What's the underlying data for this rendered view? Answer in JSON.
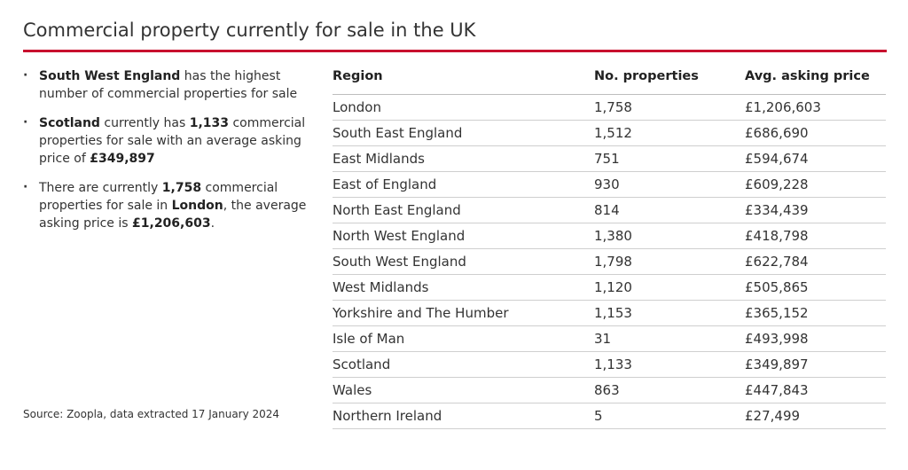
{
  "title": "Commercial property currently for sale in the UK",
  "bullets": [
    {
      "parts": [
        {
          "t": "South West England",
          "b": true
        },
        {
          "t": " has the highest number of commercial properties for sale",
          "b": false
        }
      ]
    },
    {
      "parts": [
        {
          "t": "Scotland",
          "b": true
        },
        {
          "t": " currently has ",
          "b": false
        },
        {
          "t": "1,133",
          "b": true
        },
        {
          "t": " commercial properties for sale with an average asking price of ",
          "b": false
        },
        {
          "t": "£349,897",
          "b": true
        }
      ]
    },
    {
      "parts": [
        {
          "t": "There are currently ",
          "b": false
        },
        {
          "t": "1,758",
          "b": true
        },
        {
          "t": " commercial properties for sale in ",
          "b": false
        },
        {
          "t": "London",
          "b": true
        },
        {
          "t": ", the average asking price is ",
          "b": false
        },
        {
          "t": "£1,206,603",
          "b": true
        },
        {
          "t": ".",
          "b": false
        }
      ]
    }
  ],
  "bullet_symbol": "·",
  "source": "Source: Zoopla, data extracted 17 January 2024",
  "colors": {
    "accent": "#c8102e"
  },
  "chart_data": {
    "type": "table",
    "columns": [
      "Region",
      "No. properties",
      "Avg. asking price"
    ],
    "rows": [
      [
        "London",
        "1,758",
        "£1,206,603"
      ],
      [
        "South East England",
        "1,512",
        "£686,690"
      ],
      [
        "East Midlands",
        "751",
        "£594,674"
      ],
      [
        "East of England",
        "930",
        "£609,228"
      ],
      [
        "North East England",
        "814",
        "£334,439"
      ],
      [
        "North West England",
        "1,380",
        "£418,798"
      ],
      [
        "South West England",
        "1,798",
        "£622,784"
      ],
      [
        "West Midlands",
        "1,120",
        "£505,865"
      ],
      [
        "Yorkshire and The Humber",
        "1,153",
        "£365,152"
      ],
      [
        "Isle of Man",
        "31",
        "£493,998"
      ],
      [
        "Scotland",
        "1,133",
        "£349,897"
      ],
      [
        "Wales",
        "863",
        "£447,843"
      ],
      [
        "Northern Ireland",
        "5",
        "£27,499"
      ]
    ]
  }
}
